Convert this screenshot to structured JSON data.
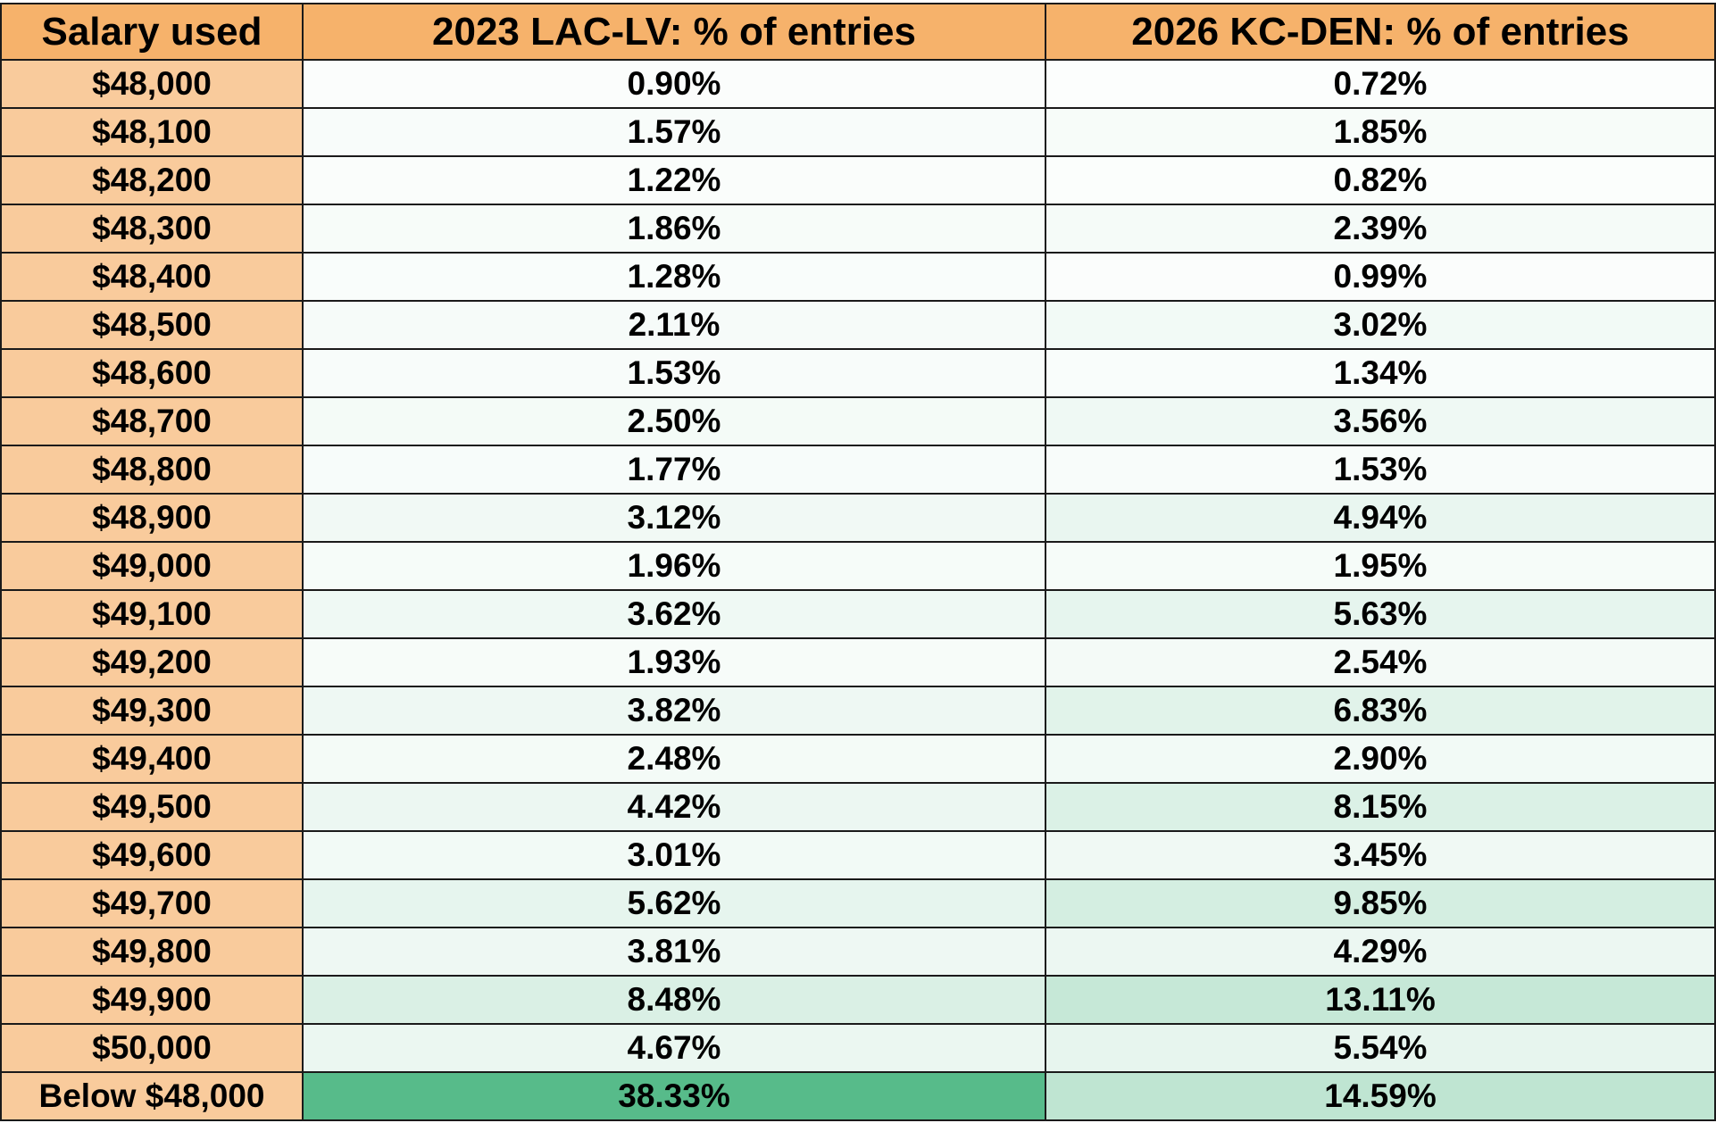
{
  "colors": {
    "header_bg": "#f6b26b",
    "label_bg": "#f9cb9c",
    "scale_low": "#ffffff",
    "scale_high": "#57bb8a",
    "grid_line": "#1a1a1a"
  },
  "chart_data": {
    "type": "table",
    "columns": [
      "Salary used",
      "2023 LAC-LV: % of entries",
      "2026 KC-DEN: % of entries"
    ],
    "value_max": 38.33,
    "rows": [
      {
        "label": "$48,000",
        "v2023": 0.9,
        "v2026": 0.72,
        "t2023": "0.90%",
        "t2026": "0.72%"
      },
      {
        "label": "$48,100",
        "v2023": 1.57,
        "v2026": 1.85,
        "t2023": "1.57%",
        "t2026": "1.85%"
      },
      {
        "label": "$48,200",
        "v2023": 1.22,
        "v2026": 0.82,
        "t2023": "1.22%",
        "t2026": "0.82%"
      },
      {
        "label": "$48,300",
        "v2023": 1.86,
        "v2026": 2.39,
        "t2023": "1.86%",
        "t2026": "2.39%"
      },
      {
        "label": "$48,400",
        "v2023": 1.28,
        "v2026": 0.99,
        "t2023": "1.28%",
        "t2026": "0.99%"
      },
      {
        "label": "$48,500",
        "v2023": 2.11,
        "v2026": 3.02,
        "t2023": "2.11%",
        "t2026": "3.02%"
      },
      {
        "label": "$48,600",
        "v2023": 1.53,
        "v2026": 1.34,
        "t2023": "1.53%",
        "t2026": "1.34%"
      },
      {
        "label": "$48,700",
        "v2023": 2.5,
        "v2026": 3.56,
        "t2023": "2.50%",
        "t2026": "3.56%"
      },
      {
        "label": "$48,800",
        "v2023": 1.77,
        "v2026": 1.53,
        "t2023": "1.77%",
        "t2026": "1.53%"
      },
      {
        "label": "$48,900",
        "v2023": 3.12,
        "v2026": 4.94,
        "t2023": "3.12%",
        "t2026": "4.94%"
      },
      {
        "label": "$49,000",
        "v2023": 1.96,
        "v2026": 1.95,
        "t2023": "1.96%",
        "t2026": "1.95%"
      },
      {
        "label": "$49,100",
        "v2023": 3.62,
        "v2026": 5.63,
        "t2023": "3.62%",
        "t2026": "5.63%"
      },
      {
        "label": "$49,200",
        "v2023": 1.93,
        "v2026": 2.54,
        "t2023": "1.93%",
        "t2026": "2.54%"
      },
      {
        "label": "$49,300",
        "v2023": 3.82,
        "v2026": 6.83,
        "t2023": "3.82%",
        "t2026": "6.83%"
      },
      {
        "label": "$49,400",
        "v2023": 2.48,
        "v2026": 2.9,
        "t2023": "2.48%",
        "t2026": "2.90%"
      },
      {
        "label": "$49,500",
        "v2023": 4.42,
        "v2026": 8.15,
        "t2023": "4.42%",
        "t2026": "8.15%"
      },
      {
        "label": "$49,600",
        "v2023": 3.01,
        "v2026": 3.45,
        "t2023": "3.01%",
        "t2026": "3.45%"
      },
      {
        "label": "$49,700",
        "v2023": 5.62,
        "v2026": 9.85,
        "t2023": "5.62%",
        "t2026": "9.85%"
      },
      {
        "label": "$49,800",
        "v2023": 3.81,
        "v2026": 4.29,
        "t2023": "3.81%",
        "t2026": "4.29%"
      },
      {
        "label": "$49,900",
        "v2023": 8.48,
        "v2026": 13.11,
        "t2023": "8.48%",
        "t2026": "13.11%"
      },
      {
        "label": "$50,000",
        "v2023": 4.67,
        "v2026": 5.54,
        "t2023": "4.67%",
        "t2026": "5.54%"
      },
      {
        "label": "Below $48,000",
        "v2023": 38.33,
        "v2026": 14.59,
        "t2023": "38.33%",
        "t2026": "14.59%"
      }
    ]
  }
}
